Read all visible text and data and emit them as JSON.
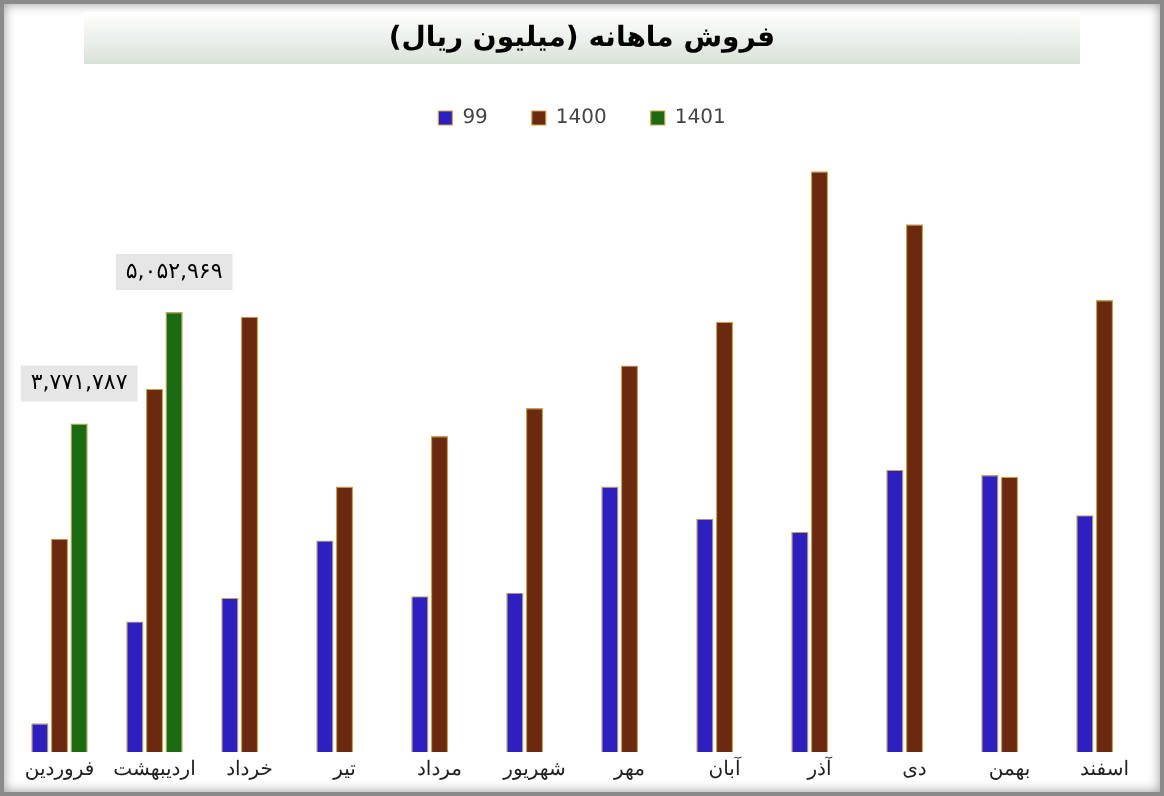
{
  "chart_data": {
    "type": "bar",
    "title": "فروش ماهانه (میلیون ریال)",
    "categories": [
      "فروردین",
      "اردیبهشت",
      "خرداد",
      "تیر",
      "مرداد",
      "شهریور",
      "مهر",
      "آبان",
      "آذر",
      "دی",
      "بهمن",
      "اسفند"
    ],
    "series": [
      {
        "name": "99",
        "color": "#2e1fbf",
        "values": [
          330000,
          1500000,
          1770000,
          2430000,
          1790000,
          1830000,
          3050000,
          2680000,
          2530000,
          3240000,
          3180000,
          2720000
        ]
      },
      {
        "name": "1400",
        "color": "#6b2a10",
        "values": [
          2450000,
          4170000,
          5000000,
          3050000,
          3630000,
          3950000,
          4440000,
          4940000,
          6670000,
          6060000,
          3160000,
          5190000
        ]
      },
      {
        "name": "1401",
        "color": "#1b6b12",
        "values": [
          3771787,
          5052969,
          null,
          null,
          null,
          null,
          null,
          null,
          null,
          null,
          null,
          null
        ],
        "value_labels": [
          "۳,۷۷۱,۷۸۷",
          "۵,۰۵۲,۹۶۹",
          null,
          null,
          null,
          null,
          null,
          null,
          null,
          null,
          null,
          null
        ]
      }
    ],
    "grid": false,
    "legend": "top"
  }
}
